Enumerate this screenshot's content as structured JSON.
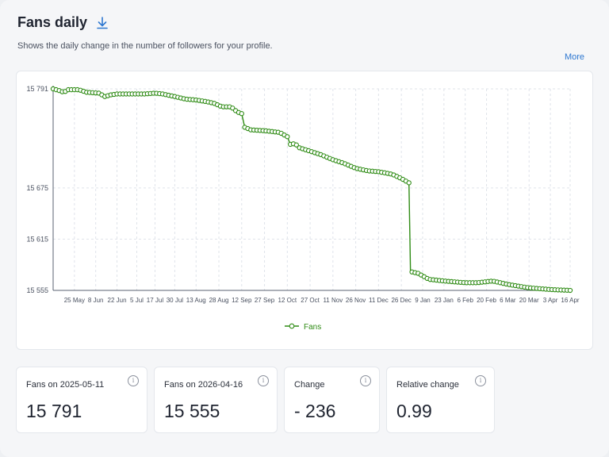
{
  "header": {
    "title": "Fans daily",
    "subtitle": "Shows the daily change in the number of followers for your profile.",
    "more_label": "More",
    "download_icon": "download-icon"
  },
  "colors": {
    "series": "#2e8b14",
    "link": "#2d77d0",
    "grid": "#dfe3ea"
  },
  "chart_data": {
    "type": "line",
    "title": "",
    "xlabel": "",
    "ylabel": "",
    "ylim": [
      15555,
      15791
    ],
    "y_ticks": [
      15555,
      15615,
      15675,
      15791
    ],
    "y_tick_labels": [
      "15 555",
      "15 615",
      "15 675",
      "15 791"
    ],
    "x_ticks": [
      "2025-05-25",
      "2025-06-08",
      "2025-06-22",
      "2025-07-05",
      "2025-07-17",
      "2025-07-30",
      "2025-08-13",
      "2025-08-28",
      "2025-09-12",
      "2025-09-27",
      "2025-10-12",
      "2025-10-27",
      "2025-11-11",
      "2025-11-26",
      "2025-12-11",
      "2025-12-26",
      "2026-01-09",
      "2026-01-23",
      "2026-02-06",
      "2026-02-20",
      "2026-03-06",
      "2026-03-20",
      "2026-04-03",
      "2026-04-16"
    ],
    "x_tick_labels": [
      "25 May",
      "8 Jun",
      "22 Jun",
      "5 Jul",
      "17 Jul",
      "30 Jul",
      "13 Aug",
      "28 Aug",
      "12 Sep",
      "27 Sep",
      "12 Oct",
      "27 Oct",
      "11 Nov",
      "26 Nov",
      "11 Dec",
      "26 Dec",
      "9 Jan",
      "23 Jan",
      "6 Feb",
      "20 Feb",
      "6 Mar",
      "20 Mar",
      "3 Apr",
      "16 Apr"
    ],
    "grid": true,
    "legend": "bottom-center",
    "series": [
      {
        "name": "Fans",
        "color": "#2e8b14",
        "points": [
          [
            "2025-05-11",
            15791
          ],
          [
            "2025-05-15",
            15789
          ],
          [
            "2025-05-18",
            15787
          ],
          [
            "2025-05-21",
            15790
          ],
          [
            "2025-05-28",
            15790
          ],
          [
            "2025-06-02",
            15787
          ],
          [
            "2025-06-10",
            15786
          ],
          [
            "2025-06-14",
            15782
          ],
          [
            "2025-06-18",
            15784
          ],
          [
            "2025-06-22",
            15785
          ],
          [
            "2025-07-05",
            15785
          ],
          [
            "2025-07-10",
            15785
          ],
          [
            "2025-07-17",
            15786
          ],
          [
            "2025-07-22",
            15785
          ],
          [
            "2025-07-30",
            15782
          ],
          [
            "2025-08-06",
            15779
          ],
          [
            "2025-08-13",
            15778
          ],
          [
            "2025-08-20",
            15776
          ],
          [
            "2025-08-25",
            15774
          ],
          [
            "2025-08-30",
            15770
          ],
          [
            "2025-09-05",
            15770
          ],
          [
            "2025-09-09",
            15764
          ],
          [
            "2025-09-12",
            15762
          ],
          [
            "2025-09-14",
            15746
          ],
          [
            "2025-09-18",
            15743
          ],
          [
            "2025-09-27",
            15742
          ],
          [
            "2025-10-07",
            15740
          ],
          [
            "2025-10-12",
            15735
          ],
          [
            "2025-10-14",
            15726
          ],
          [
            "2025-10-17",
            15727
          ],
          [
            "2025-10-20",
            15722
          ],
          [
            "2025-10-27",
            15718
          ],
          [
            "2025-11-03",
            15714
          ],
          [
            "2025-11-11",
            15708
          ],
          [
            "2025-11-18",
            15704
          ],
          [
            "2025-11-26",
            15698
          ],
          [
            "2025-12-04",
            15695
          ],
          [
            "2025-12-11",
            15694
          ],
          [
            "2025-12-20",
            15691
          ],
          [
            "2025-12-26",
            15686
          ],
          [
            "2025-12-31",
            15681
          ],
          [
            "2026-01-01",
            15577
          ],
          [
            "2026-01-06",
            15575
          ],
          [
            "2026-01-13",
            15568
          ],
          [
            "2026-01-23",
            15566
          ],
          [
            "2026-02-06",
            15564
          ],
          [
            "2026-02-14",
            15564
          ],
          [
            "2026-02-24",
            15566
          ],
          [
            "2026-03-06",
            15562
          ],
          [
            "2026-03-20",
            15558
          ],
          [
            "2026-04-03",
            15556
          ],
          [
            "2026-04-16",
            15555
          ]
        ]
      }
    ]
  },
  "stats": [
    {
      "label": "Fans on 2025-05-11",
      "value": "15 791"
    },
    {
      "label": "Fans on 2026-04-16",
      "value": "15 555"
    },
    {
      "label": "Change",
      "value": "- 236"
    },
    {
      "label": "Relative change",
      "value": "0.99"
    }
  ],
  "info_icon_glyph": "i"
}
